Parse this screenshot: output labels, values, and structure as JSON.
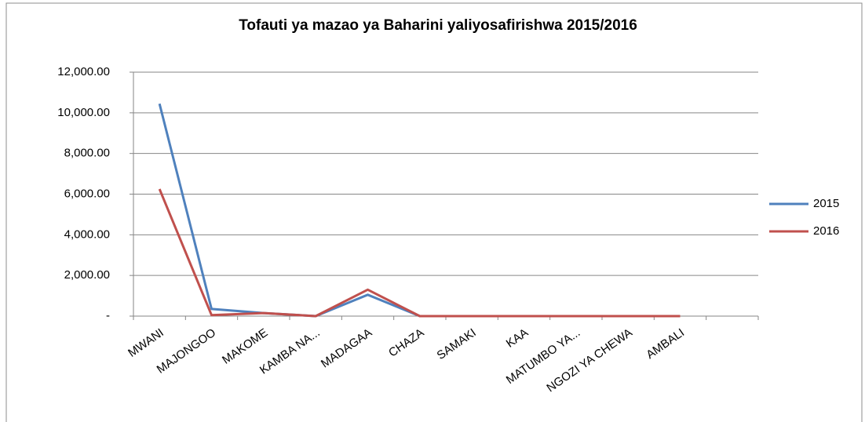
{
  "chart_data": {
    "type": "line",
    "title": "Tofauti ya mazao ya Baharini yaliyosafirishwa 2015/2016",
    "categories": [
      "MWANI",
      "MAJONGOO",
      "MAKOME",
      "KAMBA NA...",
      "MADAGAA",
      "CHAZA",
      "SAMAKI",
      "KAA",
      "MATUMBO YA...",
      "NGOZI YA CHEWA",
      "AMBALI",
      null
    ],
    "series": [
      {
        "name": "2015",
        "color": "#4f81bd",
        "values": [
          10450,
          350,
          150,
          0,
          1050,
          0,
          0,
          0,
          0,
          0,
          0,
          null
        ]
      },
      {
        "name": "2016",
        "color": "#c0504d",
        "values": [
          6250,
          50,
          150,
          0,
          1300,
          0,
          0,
          0,
          0,
          0,
          0,
          null
        ]
      }
    ],
    "ylim": [
      0,
      12000
    ],
    "yticks": [
      {
        "value": 0,
        "label": "-"
      },
      {
        "value": 2000,
        "label": "2,000.00"
      },
      {
        "value": 4000,
        "label": "4,000.00"
      },
      {
        "value": 6000,
        "label": "6,000.00"
      },
      {
        "value": 8000,
        "label": "8,000.00"
      },
      {
        "value": 10000,
        "label": "10,000.00"
      },
      {
        "value": 12000,
        "label": "12,000.00"
      }
    ],
    "grid": true,
    "legend": "right"
  }
}
